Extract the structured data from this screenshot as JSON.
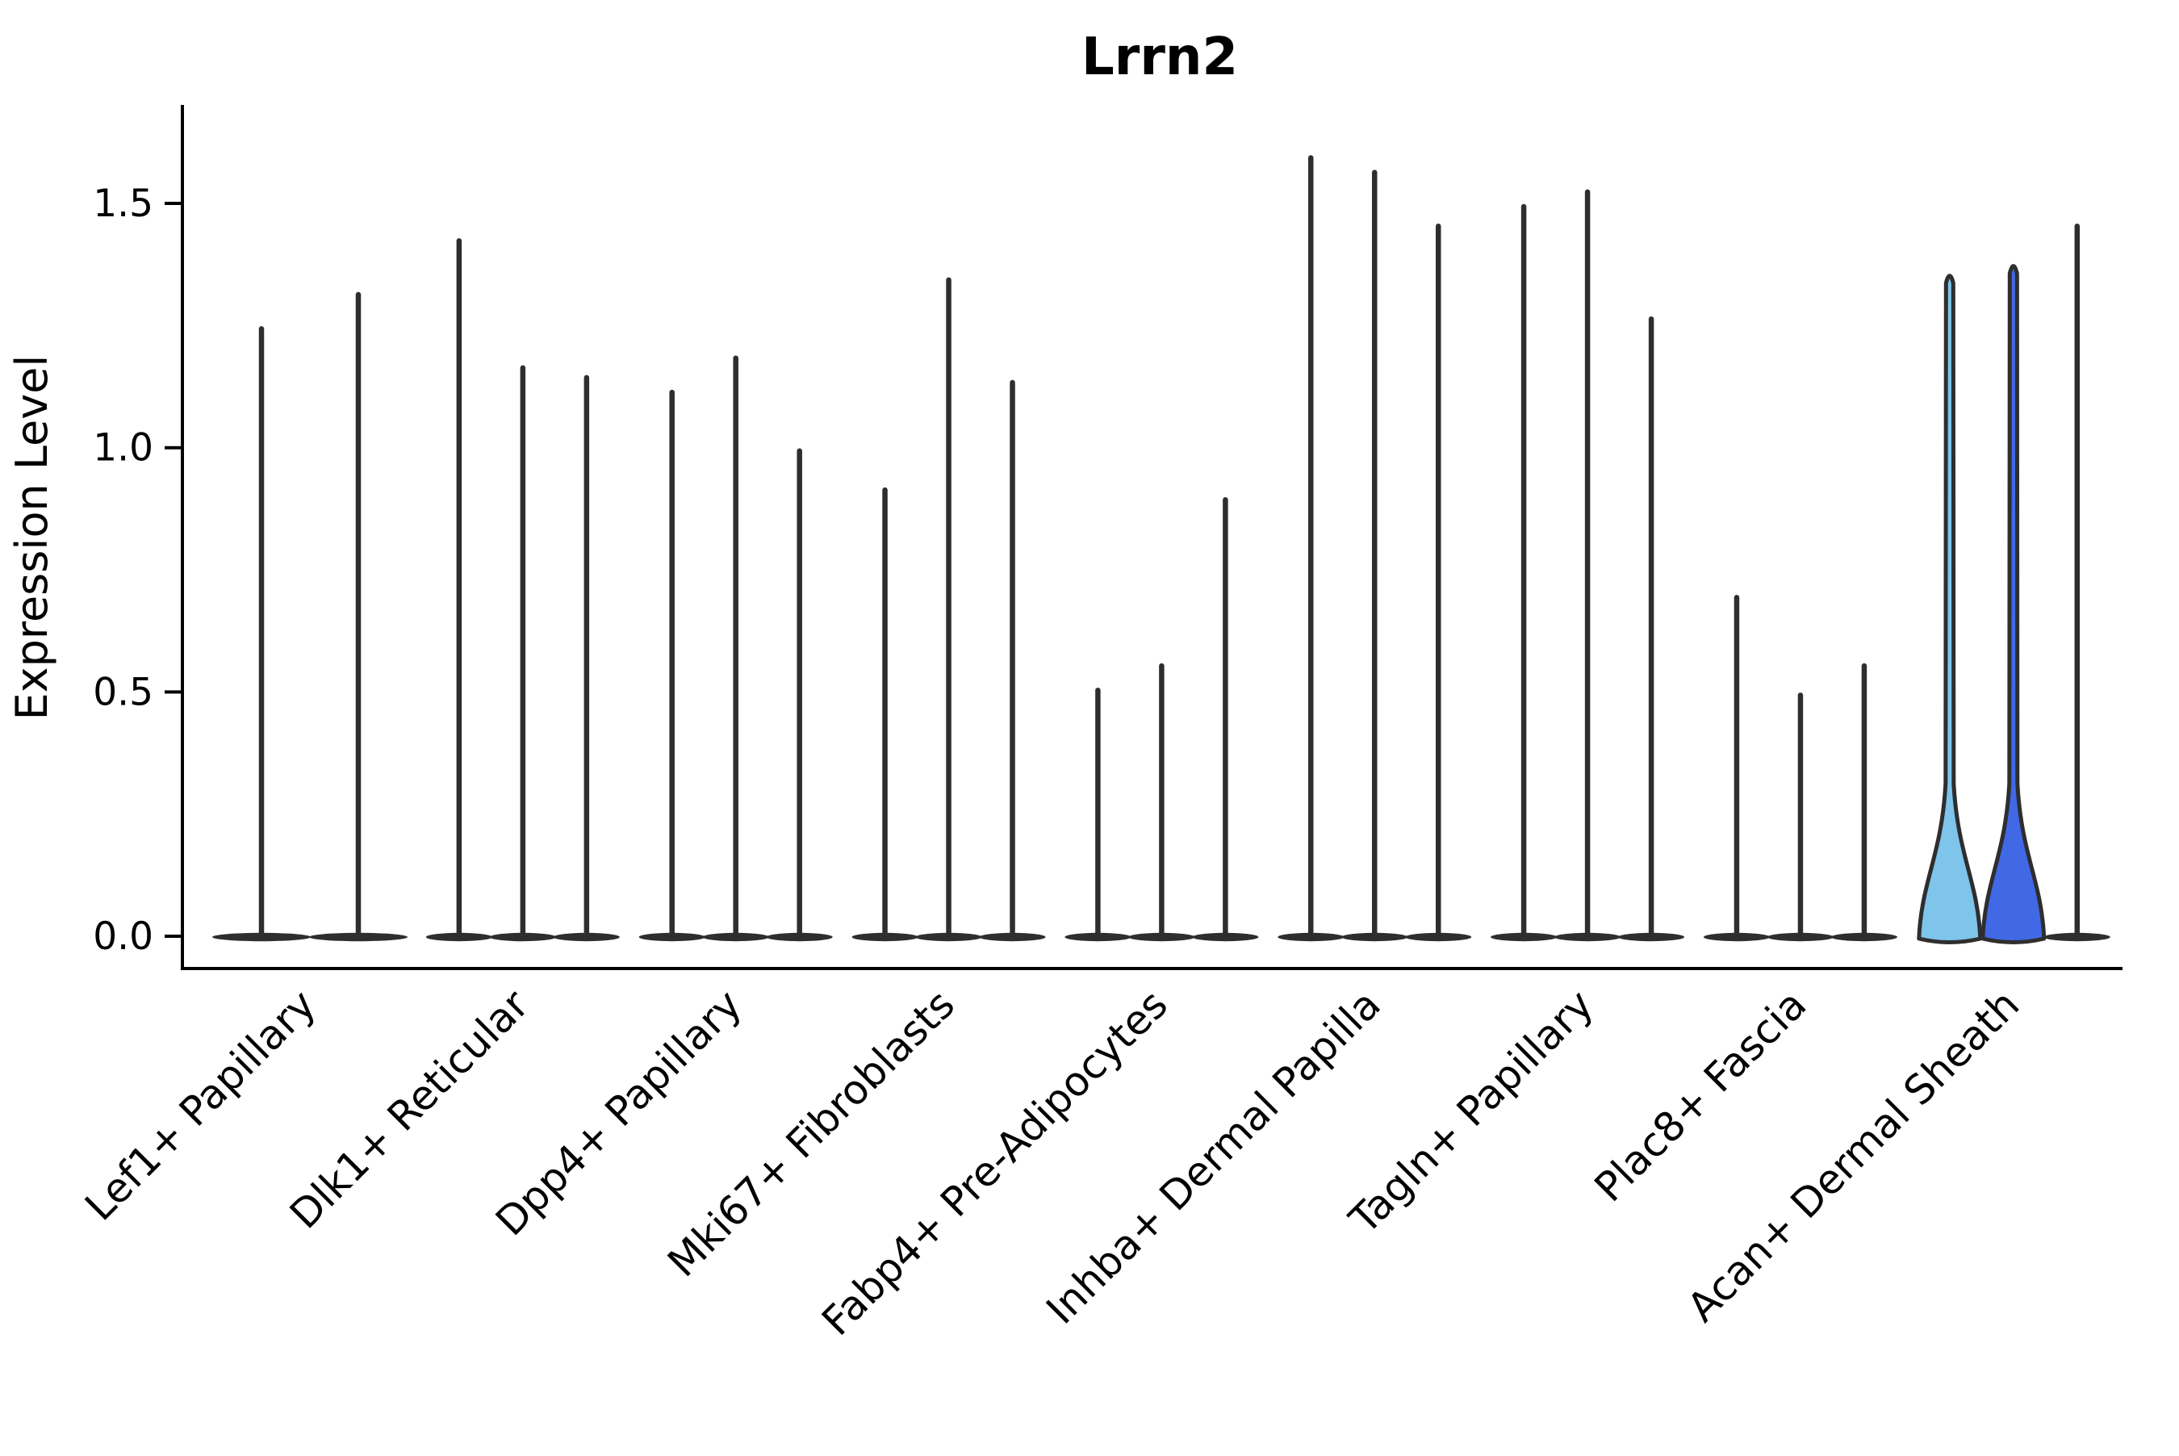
{
  "chart_data": {
    "type": "violin",
    "title": "Lrrn2",
    "ylabel": "Expression Level",
    "xlabel": "",
    "ytick_labels": [
      "0.0",
      "0.5",
      "1.0",
      "1.5"
    ],
    "ytick_values": [
      0.0,
      0.5,
      1.0,
      1.5
    ],
    "ylim": [
      -0.07,
      1.7
    ],
    "grid": false,
    "legend": "none",
    "categories": [
      "Lef1+ Papillary",
      "Dlk1+ Reticular",
      "Dpp4+ Papillary",
      "Mki67+ Fibroblasts",
      "Fabp4+ Pre-Adipocytes",
      "Inhba+ Dermal Papilla",
      "Tagln+ Papillary",
      "Plac8+ Fascia",
      "Acan+ Dermal Sheath"
    ],
    "groups": [
      {
        "category": "Lef1+ Papillary",
        "violins": [
          {
            "max": 1.25
          },
          {
            "max": 1.32
          }
        ]
      },
      {
        "category": "Dlk1+ Reticular",
        "violins": [
          {
            "max": 1.43
          },
          {
            "max": 1.17
          },
          {
            "max": 1.15
          }
        ]
      },
      {
        "category": "Dpp4+ Papillary",
        "violins": [
          {
            "max": 1.12
          },
          {
            "max": 1.19
          },
          {
            "max": 1.0
          }
        ]
      },
      {
        "category": "Mki67+ Fibroblasts",
        "violins": [
          {
            "max": 0.92
          },
          {
            "max": 1.35
          },
          {
            "max": 1.14
          }
        ]
      },
      {
        "category": "Fabp4+ Pre-Adipocytes",
        "violins": [
          {
            "max": 0.51
          },
          {
            "max": 0.56
          },
          {
            "max": 0.9
          }
        ]
      },
      {
        "category": "Inhba+ Dermal Papilla",
        "violins": [
          {
            "max": 1.6
          },
          {
            "max": 1.57
          },
          {
            "max": 1.46
          }
        ]
      },
      {
        "category": "Tagln+ Papillary",
        "violins": [
          {
            "max": 1.5
          },
          {
            "max": 1.53
          },
          {
            "max": 1.27
          }
        ]
      },
      {
        "category": "Plac8+ Fascia",
        "violins": [
          {
            "max": 0.7
          },
          {
            "max": 0.5
          },
          {
            "max": 0.56
          }
        ]
      },
      {
        "category": "Acan+ Dermal Sheath",
        "violins": [
          {
            "max": 1.36,
            "fill": "#7ec4eb",
            "wide": true
          },
          {
            "max": 1.38,
            "fill": "#4169e6",
            "wide": true
          },
          {
            "max": 1.46
          }
        ]
      }
    ],
    "colors": {
      "outline": "#2e2e2e",
      "spine": "#000000",
      "violin_fill_light_blue": "#7ec4eb",
      "violin_fill_royal_blue": "#4169e6",
      "background": "#ffffff"
    }
  }
}
